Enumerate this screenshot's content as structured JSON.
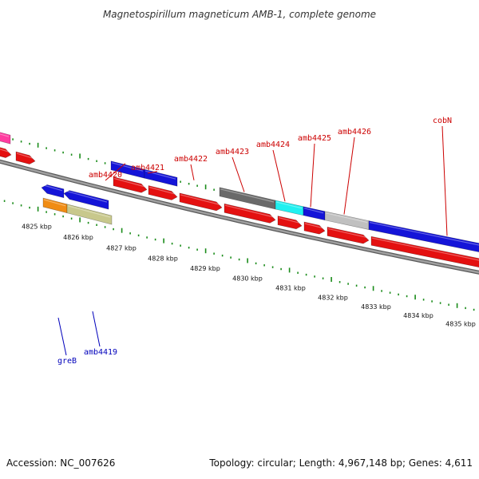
{
  "title": "Magnetospirillum magneticum AMB-1, complete genome",
  "footer": {
    "accession": "Accession: NC_007626",
    "summary": "Topology: circular; Length: 4,967,148 bp; Genes: 4,611"
  },
  "colors": {
    "forward_cds": "#e41010",
    "blue_feature": "#1414d8",
    "dark_gray_feature": "#6a6a6a",
    "cyan_feature": "#20f0f0",
    "light_gray_feature": "#c0c0c0",
    "orange_feature": "#f08c14",
    "khaki_feature": "#c8c88c",
    "magenta_feature": "#ff3ca0",
    "tick_green": "#1a8c1a",
    "backbone": "#808080",
    "label_red": "#cc0000",
    "label_blue": "#0000bb"
  },
  "gene_labels_forward": [
    "amb4420",
    "amb4421",
    "amb4422",
    "amb4423",
    "amb4424",
    "amb4425",
    "amb4426",
    "cobN"
  ],
  "gene_labels_reverse": [
    "greB",
    "amb4419"
  ],
  "scale_labels": [
    "4825 kbp",
    "4826 kbp",
    "4827 kbp",
    "4828 kbp",
    "4829 kbp",
    "4830 kbp",
    "4831 kbp",
    "4832 kbp",
    "4833 kbp",
    "4834 kbp",
    "4835 kbp"
  ]
}
